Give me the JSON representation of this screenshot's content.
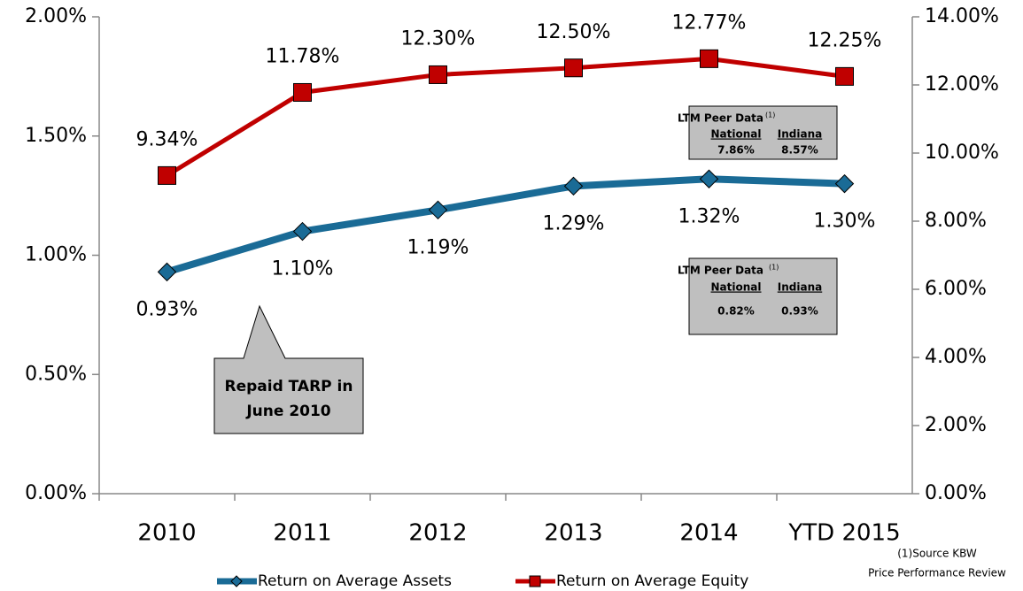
{
  "chart_data": {
    "type": "line",
    "categories": [
      "2010",
      "2011",
      "2012",
      "2013",
      "2014",
      "YTD 2015"
    ],
    "series": [
      {
        "name": "Return on Average Assets",
        "color": "#1a6b96",
        "marker": "diamond",
        "axis": "y",
        "values": [
          0.93,
          1.1,
          1.19,
          1.29,
          1.32,
          1.3
        ],
        "value_labels": [
          "0.93%",
          "1.10%",
          "1.19%",
          "1.29%",
          "1.32%",
          "1.30%"
        ]
      },
      {
        "name": "Return on Average Equity",
        "color": "#c00000",
        "marker": "square",
        "axis": "y2",
        "values": [
          9.34,
          11.78,
          12.3,
          12.5,
          12.77,
          12.25
        ],
        "value_labels": [
          "9.34%",
          "11.78%",
          "12.30%",
          "12.50%",
          "12.77%",
          "12.25%"
        ]
      }
    ],
    "ylim": [
      0,
      2
    ],
    "yticks": [
      {
        "value": 0,
        "label": "0.00%"
      },
      {
        "value": 0.5,
        "label": "0.50%"
      },
      {
        "value": 1,
        "label": "1.00%"
      },
      {
        "value": 1.5,
        "label": "1.50%"
      },
      {
        "value": 2,
        "label": "2.00%"
      }
    ],
    "y2lim": [
      0,
      14
    ],
    "y2ticks": [
      {
        "value": 0,
        "label": "0.00%"
      },
      {
        "value": 2,
        "label": "2.00%"
      },
      {
        "value": 4,
        "label": "4.00%"
      },
      {
        "value": 6,
        "label": "6.00%"
      },
      {
        "value": 8,
        "label": "8.00%"
      },
      {
        "value": 10,
        "label": "10.00%"
      },
      {
        "value": 12,
        "label": "12.00%"
      },
      {
        "value": 14,
        "label": "14.00%"
      }
    ],
    "grid": false,
    "legend": "bottom",
    "callout": [
      "Repaid TARP in",
      "June 2010"
    ],
    "peer_boxes": [
      {
        "title": "LTM Peer Data",
        "note": "(1)",
        "columns": [
          "National",
          "Indiana"
        ],
        "values": [
          "7.86%",
          "8.57%"
        ]
      },
      {
        "title": "LTM Peer Data",
        "note": "(1)",
        "columns": [
          "National",
          "Indiana"
        ],
        "values": [
          "0.82%",
          "0.93%"
        ]
      }
    ],
    "footnote": [
      "(1)Source KBW",
      "Price Performance Review"
    ]
  }
}
